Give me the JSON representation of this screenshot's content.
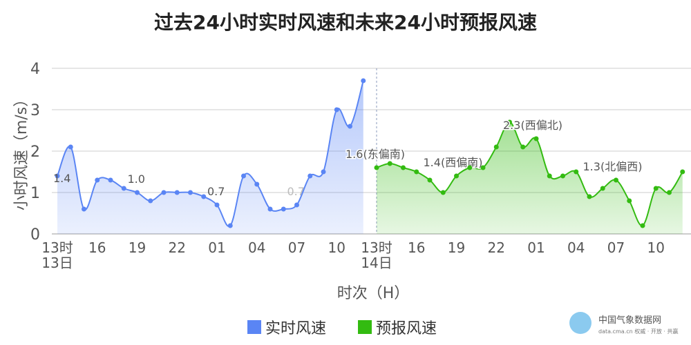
{
  "chart_data": {
    "type": "line",
    "title": "过去24小时实时风速和未来24小时预报风速",
    "y_label": "小时风速（m/s）",
    "x_label": "时次（H）",
    "categories": [
      "13时\n13日",
      null,
      null,
      "16",
      null,
      null,
      "19",
      null,
      null,
      "22",
      null,
      null,
      "01",
      null,
      null,
      "04",
      null,
      null,
      "07",
      null,
      null,
      "10",
      null,
      null,
      "13时\n14日",
      null,
      null,
      "16",
      null,
      null,
      "19",
      null,
      null,
      "22",
      null,
      null,
      "01",
      null,
      null,
      "04",
      null,
      null,
      "07",
      null,
      null,
      "10",
      null,
      null
    ],
    "ylim": [
      0,
      4
    ],
    "yticks": [
      0,
      1,
      2,
      3,
      4
    ],
    "grid": true,
    "legend": "bottom",
    "series": [
      {
        "name": "实时风速",
        "color": "#5a85f4",
        "values": [
          1.4,
          2.1,
          0.6,
          1.3,
          1.3,
          1.1,
          1.0,
          0.8,
          1.0,
          1.0,
          1.0,
          0.9,
          0.7,
          0.2,
          1.4,
          1.2,
          0.6,
          0.6,
          0.7,
          1.4,
          1.5,
          3.0,
          2.6,
          3.7,
          null,
          null,
          null,
          null,
          null,
          null,
          null,
          null,
          null,
          null,
          null,
          null,
          null,
          null,
          null,
          null,
          null,
          null,
          null,
          null,
          null,
          null,
          null,
          null
        ],
        "value_labels": [
          null,
          null,
          null,
          null,
          null,
          null,
          null,
          null,
          null,
          null,
          null,
          null,
          null,
          null,
          null,
          null,
          null,
          null,
          null,
          null,
          null,
          null,
          null,
          null,
          null,
          null,
          null,
          null,
          null,
          null,
          null,
          null,
          null,
          null,
          null,
          null,
          null,
          null,
          null,
          null,
          null,
          null,
          null,
          null,
          null,
          null,
          null,
          null
        ]
      },
      {
        "name": "预报风速",
        "color": "#33bb11",
        "values": [
          null,
          null,
          null,
          null,
          null,
          null,
          null,
          null,
          null,
          null,
          null,
          null,
          null,
          null,
          null,
          null,
          null,
          null,
          null,
          null,
          null,
          null,
          null,
          null,
          1.6,
          1.7,
          1.6,
          1.5,
          1.3,
          1.0,
          1.4,
          1.6,
          1.6,
          2.1,
          2.7,
          2.1,
          2.3,
          1.4,
          1.4,
          1.5,
          0.9,
          1.1,
          1.3,
          0.8,
          0.2,
          1.1,
          1.0,
          1.5
        ],
        "value_labels": [
          null,
          null,
          null,
          null,
          null,
          null,
          null,
          null,
          null,
          null,
          null,
          null,
          null,
          null,
          null,
          null,
          null,
          null,
          null,
          null,
          null,
          null,
          null,
          null,
          "1.6(东偏南)",
          null,
          null,
          null,
          null,
          null,
          "1.4(西偏南)",
          null,
          null,
          null,
          null,
          null,
          "2.3(西偏北)",
          null,
          null,
          null,
          null,
          null,
          "1.3(北偏西)",
          null,
          null,
          null,
          null,
          null
        ]
      }
    ],
    "past_value_labels": [
      {
        "index": 0,
        "label": "1.4"
      },
      {
        "index": 6,
        "label": "1.0"
      },
      {
        "index": 12,
        "label": "0.7"
      },
      {
        "index": 18,
        "label": "0.7"
      }
    ],
    "watermark": {
      "name": "中国气象数据网",
      "sub": "data.cma.cn 权威 · 开放 · 共赢"
    }
  }
}
